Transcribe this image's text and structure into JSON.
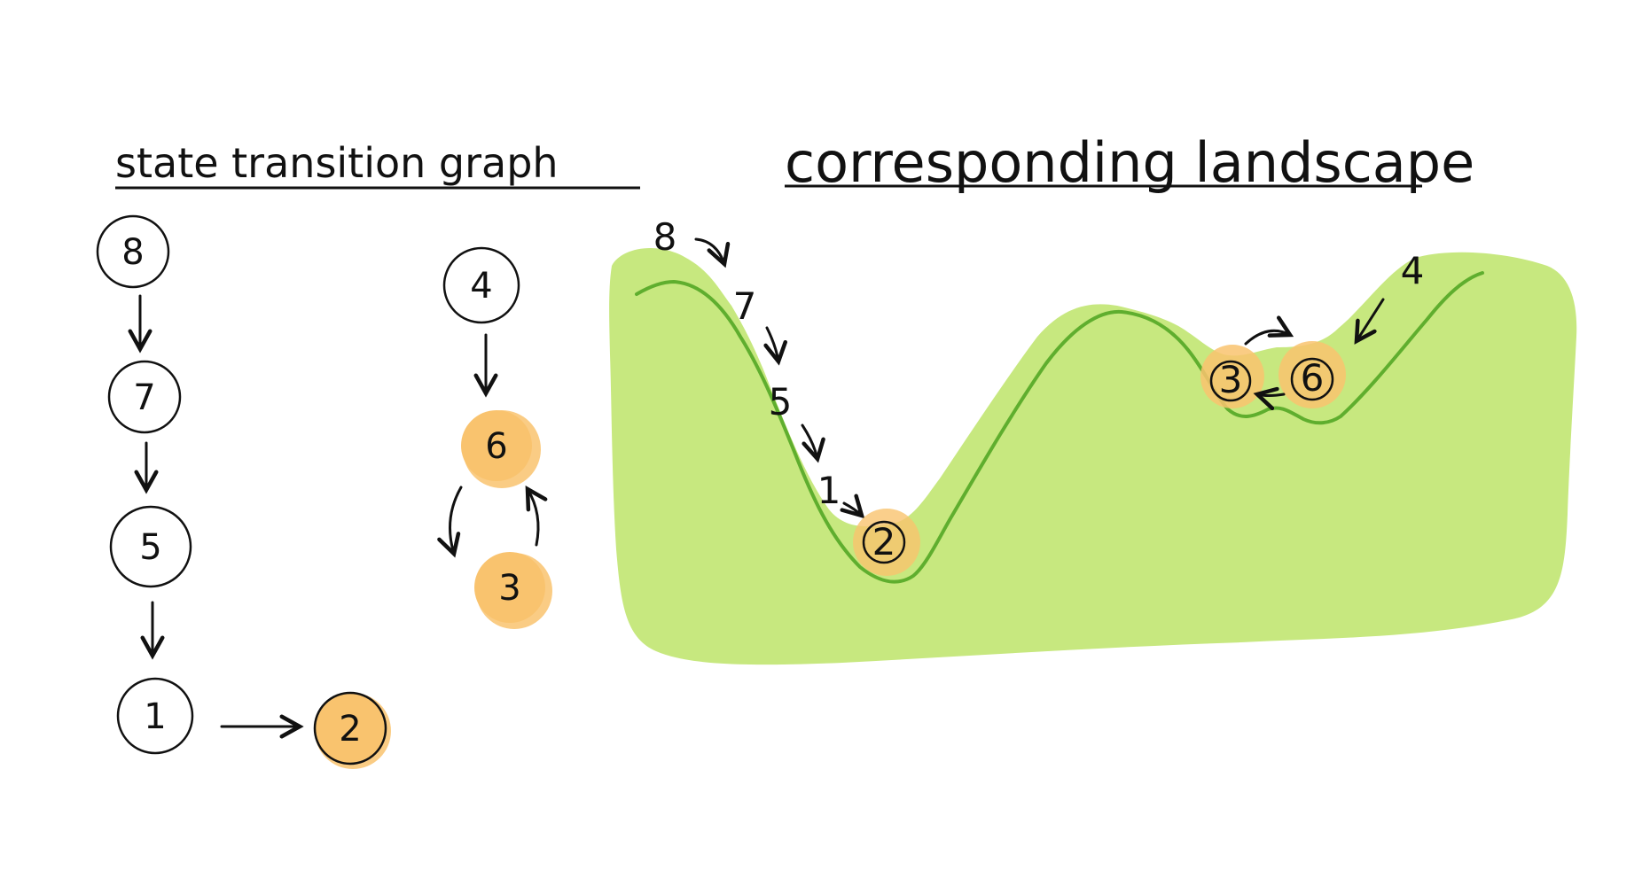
{
  "titles": {
    "graph": "state transition graph",
    "landscape": "corresponding landscape"
  },
  "graph_nodes": {
    "n8": "8",
    "n7": "7",
    "n5": "5",
    "n1": "1",
    "n2": "2",
    "n4": "4",
    "n6": "6",
    "n3": "3"
  },
  "landscape_labels": {
    "l8": "8",
    "l7": "7",
    "l5": "5",
    "l1": "1",
    "l2": "2",
    "l4": "4",
    "l3": "3",
    "l6": "6"
  },
  "colors": {
    "attractor_fill": "#f9c36e",
    "landscape_fill": "#c7e87f",
    "landscape_line": "#5fae2e",
    "ink": "#111111"
  }
}
